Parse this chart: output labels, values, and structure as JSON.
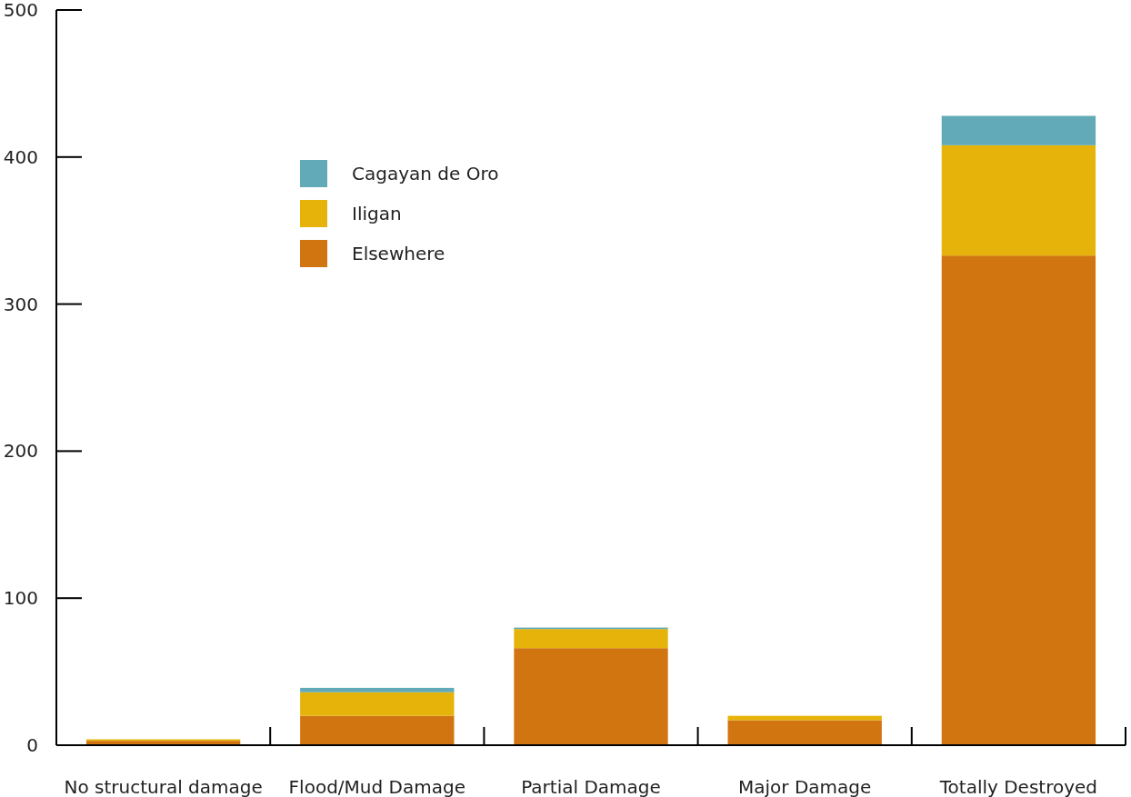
{
  "chart_data": {
    "type": "bar",
    "stacked": true,
    "categories": [
      "No structural damage",
      "Flood/Mud Damage",
      "Partial Damage",
      "Major Damage",
      "Totally Destroyed"
    ],
    "series": [
      {
        "name": "Elsewhere",
        "color": "#d17510",
        "values": [
          3,
          20,
          66,
          17,
          333
        ]
      },
      {
        "name": "Iligan",
        "color": "#e6b30a",
        "values": [
          1,
          16,
          13,
          3,
          75
        ]
      },
      {
        "name": "Cagayan de Oro",
        "color": "#62aab8",
        "values": [
          0,
          3,
          1,
          0,
          20
        ]
      }
    ],
    "ylim": [
      0,
      500
    ],
    "yticks": [
      0,
      100,
      200,
      300,
      400,
      500
    ],
    "legend": "top left",
    "grid": false
  }
}
